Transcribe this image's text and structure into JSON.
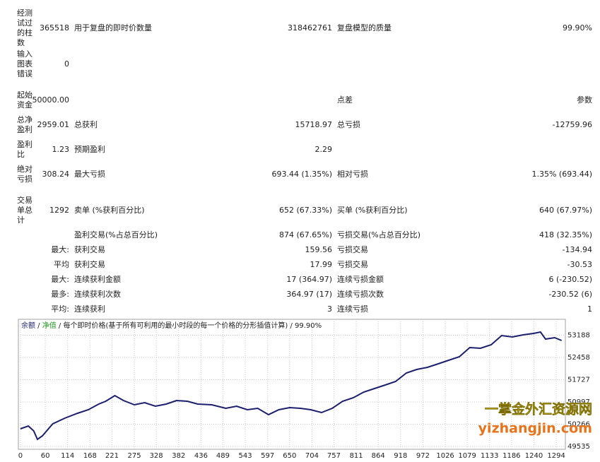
{
  "report": {
    "rows": [
      [
        "经测试过的柱数",
        "365518",
        "用于复盘的即时价数量",
        "318462761",
        "复盘模型的质量",
        "99.90%"
      ],
      [
        "输入图表错误",
        "0",
        null,
        null,
        null,
        null
      ],
      [
        "起始资金",
        "50000.00",
        null,
        null,
        "点差",
        "参数"
      ],
      [
        "总净盈利",
        "2959.01",
        "总获利",
        "15718.97",
        "总亏损",
        "-12759.96"
      ],
      [
        "盈利比",
        "1.23",
        "预期盈利",
        "2.29",
        null,
        null
      ],
      [
        "绝对亏损",
        "308.24",
        "最大亏损",
        "693.44 (1.35%)",
        "相对亏损",
        "1.35% (693.44)"
      ],
      [
        "交易单总计",
        "1292",
        "卖单 (%获利百分比)",
        "652 (67.33%)",
        "买单 (%获利百分比)",
        "640 (67.97%)"
      ],
      [
        null,
        null,
        "盈利交易(%占总百分比)",
        "874 (67.65%)",
        "亏损交易(%占总百分比)",
        "418 (32.35%)"
      ],
      [
        null,
        "最大:",
        "获利交易",
        "159.56",
        "亏损交易",
        "-134.94"
      ],
      [
        null,
        "平均",
        "获利交易",
        "17.99",
        "亏损交易",
        "-30.53"
      ],
      [
        null,
        "最大:",
        "连续获利金额",
        "17 (364.97)",
        "连续亏损金额",
        "6 (-230.52)"
      ],
      [
        null,
        "最多:",
        "连续获利次数",
        "364.97 (17)",
        "连续亏损次数",
        "-230.52 (6)"
      ],
      [
        null,
        "平均:",
        "连续获利",
        "3",
        "连续亏损",
        "1"
      ]
    ]
  },
  "chart_data": {
    "type": "line",
    "series": [
      {
        "name": "余额",
        "color": "#1b1f6e",
        "values": [
          50115,
          50207,
          50045,
          49767,
          49883,
          50277,
          50463,
          50625,
          50741,
          50926,
          51019,
          51205,
          51042,
          50903,
          50973,
          50857,
          50926,
          51042,
          51019,
          50926,
          50903,
          50787,
          50857,
          50741,
          50787,
          50579,
          50741,
          50810,
          50787,
          50741,
          50648,
          50787,
          51019,
          51135,
          51321,
          51437,
          51553,
          51668,
          51947,
          52063,
          52132,
          52248,
          52364,
          52480,
          52782,
          52758,
          52874,
          53176,
          53129,
          53199,
          53245,
          53292,
          53060,
          53106,
          53014
        ]
      }
    ],
    "x": [
      0,
      19,
      32,
      41,
      53,
      78,
      107,
      138,
      164,
      189,
      206,
      228,
      249,
      275,
      300,
      326,
      352,
      377,
      403,
      428,
      462,
      496,
      522,
      548,
      573,
      599,
      624,
      650,
      676,
      701,
      727,
      753,
      778,
      804,
      829,
      855,
      881,
      906,
      932,
      957,
      983,
      1009,
      1034,
      1060,
      1085,
      1111,
      1137,
      1162,
      1188,
      1214,
      1239,
      1256,
      1268,
      1290,
      1307
    ],
    "legend": [
      {
        "text": "净值",
        "color": "#1a9a1a"
      },
      {
        "text": "每个即时价格(基于所有可利用的最小时段的每一个价格的分形插值计算)",
        "color": "#222"
      },
      {
        "text": "99.90%",
        "color": "#222"
      }
    ],
    "legend_separator": " / ",
    "xlim": [
      -5,
      1316
    ],
    "ylim": [
      49442,
      53709
    ],
    "xticks": [
      0,
      60,
      114,
      168,
      221,
      275,
      328,
      382,
      436,
      489,
      543,
      597,
      650,
      704,
      757,
      811,
      864,
      918,
      972,
      1026,
      1079,
      1133,
      1186,
      1240,
      1294
    ],
    "yticks": [
      53188,
      52458,
      51727,
      50997,
      50266,
      49535
    ],
    "watermark": [
      "一掌金外汇资源网",
      "yizhangjin.com"
    ]
  }
}
